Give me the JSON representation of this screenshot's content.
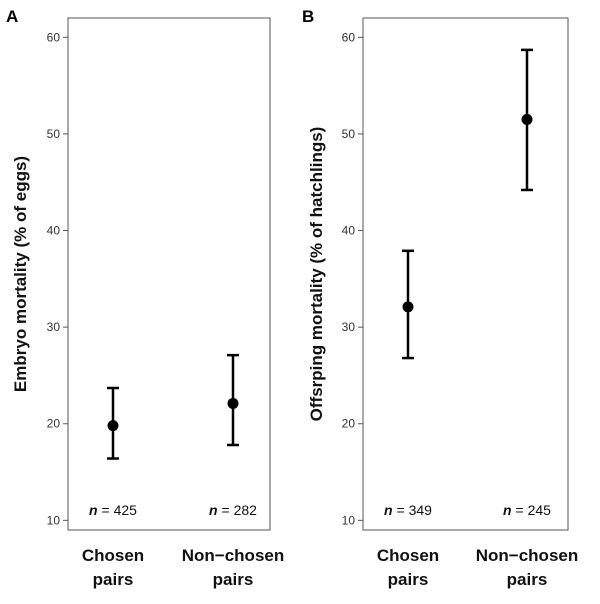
{
  "chart_data": [
    {
      "type": "scatter",
      "panel": "A",
      "ylabel": "Embryo mortality (% of eggs)",
      "ylim": [
        9,
        62
      ],
      "yticks": [
        10,
        20,
        30,
        40,
        50,
        60
      ],
      "categories": [
        [
          "Chosen",
          "pairs"
        ],
        [
          "Non−chosen",
          "pairs"
        ]
      ],
      "values": [
        19.8,
        22.1
      ],
      "error_low": [
        16.4,
        17.8
      ],
      "error_high": [
        23.7,
        27.1
      ],
      "n_prefix": "n",
      "n_text": [
        "= 425",
        "= 282"
      ],
      "grid": false,
      "legend": "none"
    },
    {
      "type": "scatter",
      "panel": "B",
      "ylabel": "Offsrping mortality (% of hatchlings)",
      "ylim": [
        9,
        62
      ],
      "yticks": [
        10,
        20,
        30,
        40,
        50,
        60
      ],
      "categories": [
        [
          "Chosen",
          "pairs"
        ],
        [
          "Non−chosen",
          "pairs"
        ]
      ],
      "values": [
        32.1,
        51.5
      ],
      "error_low": [
        26.8,
        44.2
      ],
      "error_high": [
        37.9,
        58.7
      ],
      "n_prefix": "n",
      "n_text": [
        "= 349",
        "= 245"
      ],
      "grid": false,
      "legend": "none"
    }
  ],
  "colors": {
    "point": "#000000",
    "frame": "#555555",
    "text": "#111111"
  }
}
